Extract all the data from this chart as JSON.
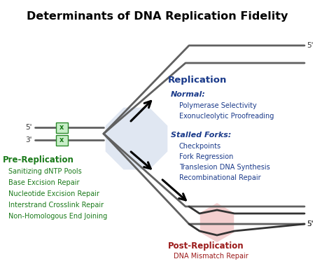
{
  "title": "Determinants of DNA Replication Fidelity",
  "title_fontsize": 11.5,
  "bg_color": "#ffffff",
  "pre_rep_label": "Pre-Replication",
  "pre_rep_color": "#1a7a1a",
  "pre_rep_items": [
    "Sanitizing dNTP Pools",
    "Base Excision Repair",
    "Nucleotide Excision Repair",
    "Interstrand Crosslink Repair",
    "Non-Homologous End Joining"
  ],
  "rep_label": "Replication",
  "rep_color": "#1a3a8a",
  "rep_normal_label": "Normal:",
  "rep_normal_items": [
    "Polymerase Selectivity",
    "Exonucleolytic Proofreading"
  ],
  "rep_stalled_label": "Stalled Forks:",
  "rep_stalled_items": [
    "Checkpoints",
    "Fork Regression",
    "Translesion DNA Synthesis",
    "Recombinational Repair"
  ],
  "post_rep_label": "Post-Replication",
  "post_rep_color": "#9b1a1a",
  "post_rep_items": [
    "DNA Mismatch Repair"
  ],
  "octagon_color": "#c8d4e8",
  "pink_hex_color": "#f0c0c0",
  "gray": "#606060",
  "darkgray": "#333333"
}
